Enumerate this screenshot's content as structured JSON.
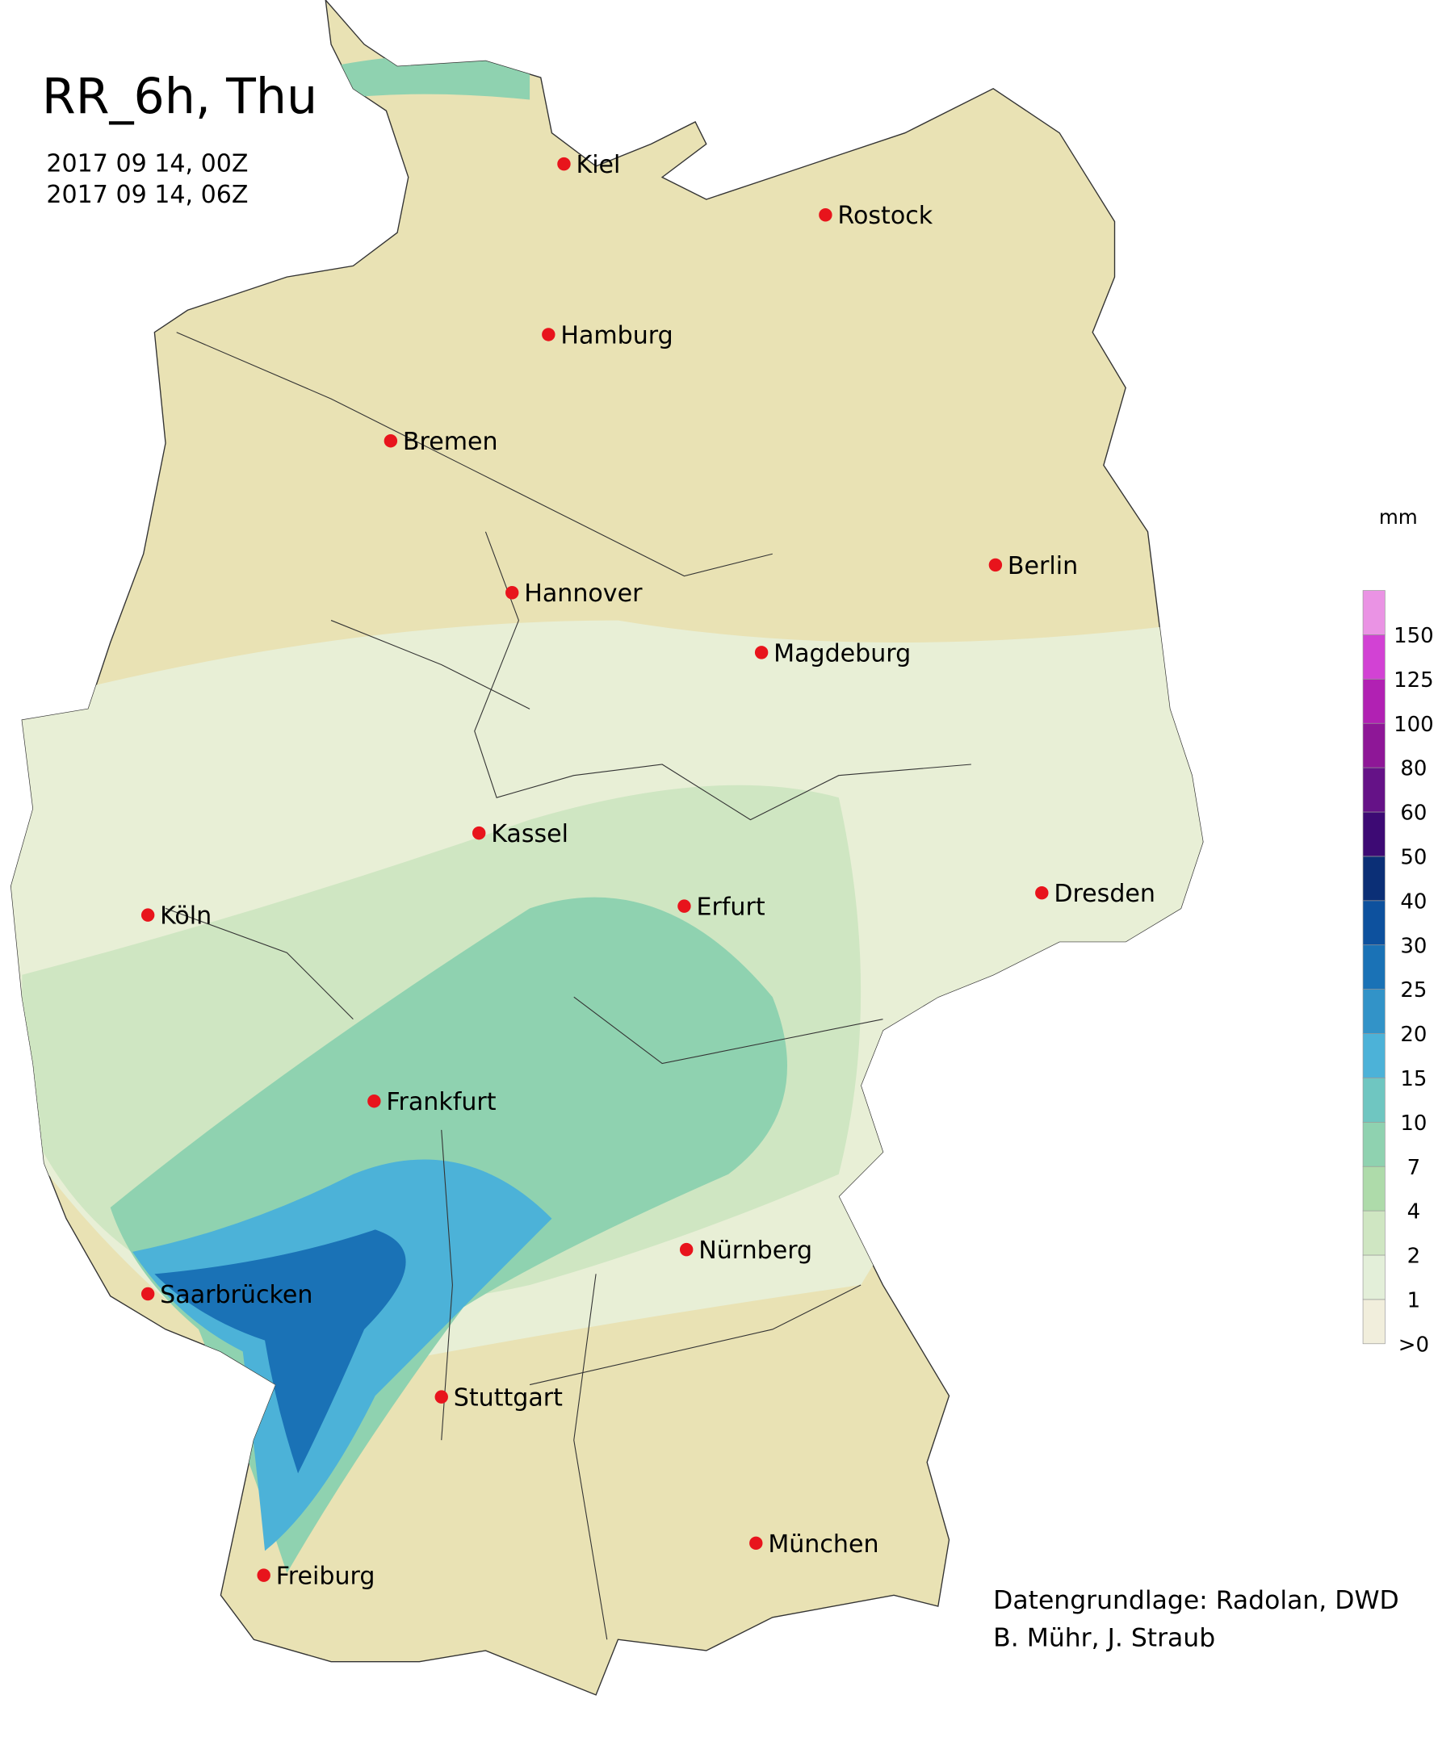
{
  "title": "RR_6h, Thu",
  "time_start": "2017 09 14, 00Z",
  "time_end": "2017 09 14, 06Z",
  "cities": [
    "Kiel",
    "Rostock",
    "Hamburg",
    "Bremen",
    "Berlin",
    "Hannover",
    "Magdeburg",
    "Kassel",
    "Köln",
    "Erfurt",
    "Dresden",
    "Frankfurt",
    "Saarbrücken",
    "Nürnberg",
    "Stuttgart",
    "Freiburg",
    "München"
  ],
  "legend": {
    "unit": "mm",
    "levels": [
      {
        "value": 0,
        "label": ">0"
      },
      1,
      2,
      4,
      7,
      10,
      15,
      20,
      25,
      30,
      40,
      50,
      60,
      80,
      100,
      125,
      150
    ],
    "colors": [
      "#f1eedc",
      "#e3efd9",
      "#cfe6c2",
      "#aedbaa",
      "#8fd2b0",
      "#6fc6c1",
      "#4cb2d8",
      "#3293c8",
      "#1a72b6",
      "#0d519e",
      "#0b2f76",
      "#3d0a74",
      "#651287",
      "#8e1797",
      "#b121b3",
      "#d242d4",
      "#ea93e4"
    ]
  },
  "credits": [
    "Datengrundlage: Radolan, DWD",
    "B. Mühr, J. Straub"
  ]
}
